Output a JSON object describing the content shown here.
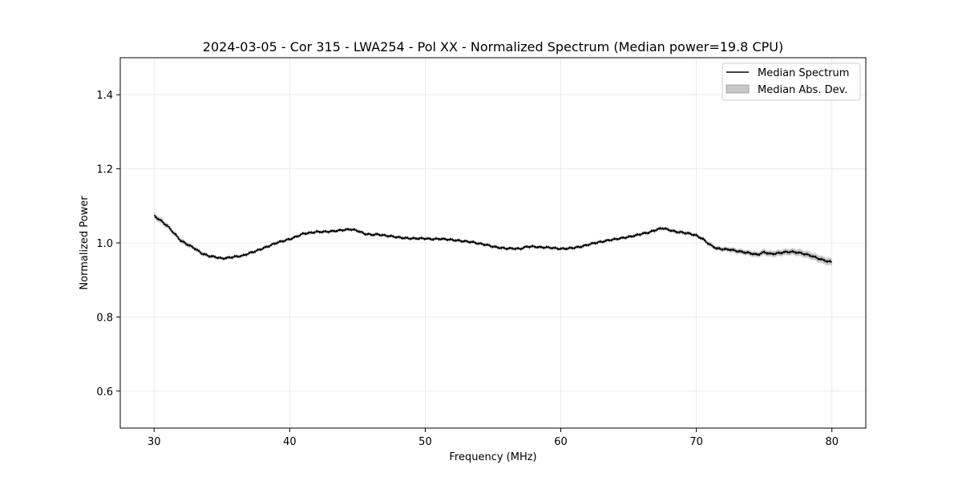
{
  "chart_data": {
    "type": "line",
    "title": "2024-03-05 - Cor 315 - LWA254 - Pol XX - Normalized Spectrum (Median power=19.8 CPU)",
    "xlabel": "Frequency (MHz)",
    "ylabel": "Normalized Power",
    "xlim": [
      27.5,
      82.5
    ],
    "ylim": [
      0.5,
      1.5
    ],
    "xticks": [
      30,
      40,
      50,
      60,
      70,
      80
    ],
    "xtick_labels": [
      "30",
      "40",
      "50",
      "60",
      "70",
      "80"
    ],
    "yticks": [
      0.6,
      0.8,
      1.0,
      1.2,
      1.4
    ],
    "ytick_labels": [
      "0.6",
      "0.8",
      "1.0",
      "1.2",
      "1.4"
    ],
    "grid": true,
    "legend": {
      "position": "top-right",
      "entries": [
        "Median Spectrum",
        "Median Abs. Dev."
      ]
    },
    "colors": {
      "line": "#000000",
      "band": "#b0b0b0",
      "grid": "#e6e6e6"
    },
    "series": [
      {
        "name": "Median Spectrum",
        "x": [
          30,
          30.5,
          31,
          31.5,
          32,
          32.5,
          33,
          33.5,
          34,
          34.5,
          35,
          35.5,
          36,
          36.5,
          37,
          37.5,
          38,
          38.5,
          39,
          39.5,
          40,
          40.5,
          41,
          41.5,
          42,
          42.5,
          43,
          43.5,
          44,
          44.5,
          45,
          45.5,
          46,
          46.5,
          47,
          47.5,
          48,
          48.5,
          49,
          49.5,
          50,
          50.5,
          51,
          51.5,
          52,
          52.5,
          53,
          53.5,
          54,
          54.5,
          55,
          55.5,
          56,
          56.5,
          57,
          57.5,
          58,
          58.5,
          59,
          59.5,
          60,
          60.5,
          61,
          61.5,
          62,
          62.5,
          63,
          63.5,
          64,
          64.5,
          65,
          65.5,
          66,
          66.5,
          67,
          67.5,
          68,
          68.5,
          69,
          69.5,
          70,
          70.5,
          71,
          71.5,
          72,
          72.5,
          73,
          73.5,
          74,
          74.5,
          75,
          75.5,
          76,
          76.5,
          77,
          77.5,
          78,
          78.5,
          79,
          79.5,
          80
        ],
        "values": [
          1.073,
          1.06,
          1.045,
          1.025,
          1.005,
          0.995,
          0.985,
          0.972,
          0.965,
          0.962,
          0.958,
          0.96,
          0.963,
          0.965,
          0.972,
          0.978,
          0.985,
          0.992,
          1.0,
          1.005,
          1.01,
          1.017,
          1.025,
          1.027,
          1.03,
          1.03,
          1.031,
          1.033,
          1.035,
          1.037,
          1.033,
          1.025,
          1.022,
          1.023,
          1.02,
          1.018,
          1.015,
          1.013,
          1.012,
          1.012,
          1.012,
          1.01,
          1.011,
          1.01,
          1.008,
          1.006,
          1.004,
          1.002,
          0.998,
          0.995,
          0.99,
          0.987,
          0.985,
          0.985,
          0.984,
          0.99,
          0.99,
          0.988,
          0.988,
          0.986,
          0.984,
          0.985,
          0.987,
          0.99,
          0.995,
          1.0,
          1.003,
          1.007,
          1.01,
          1.013,
          1.016,
          1.02,
          1.025,
          1.028,
          1.035,
          1.04,
          1.035,
          1.03,
          1.028,
          1.025,
          1.02,
          1.01,
          0.995,
          0.985,
          0.983,
          0.982,
          0.978,
          0.975,
          0.972,
          0.968,
          0.975,
          0.97,
          0.972,
          0.975,
          0.976,
          0.974,
          0.97,
          0.965,
          0.958,
          0.952,
          0.948
        ]
      },
      {
        "name": "Median Abs. Dev.",
        "x": [
          30,
          35,
          40,
          45,
          50,
          55,
          60,
          65,
          70,
          75,
          80
        ],
        "values": [
          0.008,
          0.004,
          0.004,
          0.004,
          0.004,
          0.004,
          0.004,
          0.004,
          0.005,
          0.008,
          0.01
        ]
      }
    ]
  }
}
